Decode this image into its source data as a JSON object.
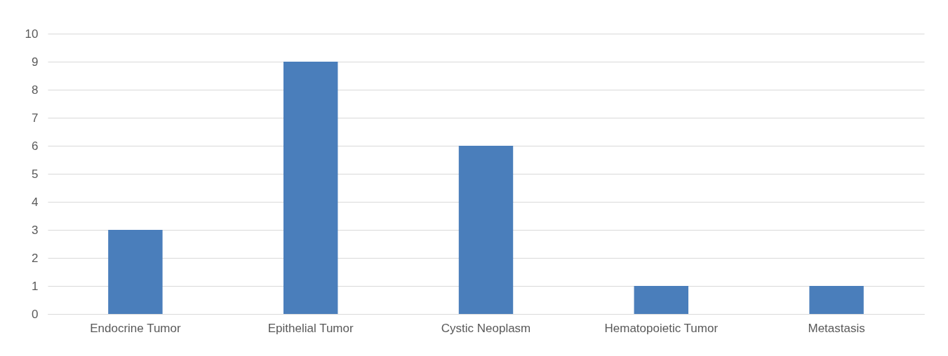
{
  "chart_data": {
    "type": "bar",
    "categories": [
      "Endocrine Tumor",
      "Epithelial Tumor",
      "Cystic Neoplasm",
      "Hematopoietic Tumor",
      "Metastasis"
    ],
    "values": [
      3,
      9,
      6,
      1,
      1
    ],
    "color": "#4a7ebb",
    "ylim": [
      0,
      10
    ],
    "yticks": [
      0,
      1,
      2,
      3,
      4,
      5,
      6,
      7,
      8,
      9,
      10
    ],
    "grid": "y"
  }
}
